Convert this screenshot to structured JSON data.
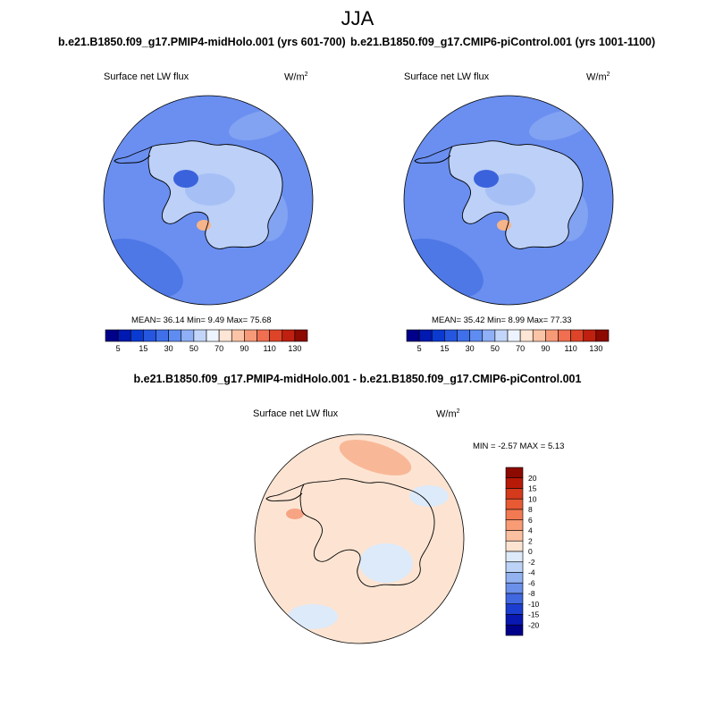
{
  "page": {
    "title": "JJA",
    "diff_title": "b.e21.B1850.f09_g17.PMIP4-midHolo.001 - b.e21.B1850.f09_g17.CMIP6-piControl.001"
  },
  "chart_data": [
    {
      "type": "heatmap",
      "projection": "south-polar-stereographic",
      "title": "b.e21.B1850.f09_g17.PMIP4-midHolo.001 (yrs 601-700)",
      "variable": "Surface net LW flux",
      "units_base": "W/m",
      "units_exp": "2",
      "stats": "MEAN=  36.14  Min=   9.49  Max=  75.68",
      "mean": 36.14,
      "min": 9.49,
      "max": 75.68,
      "colorbar": {
        "orientation": "horizontal",
        "levels": [
          5,
          10,
          15,
          20,
          30,
          40,
          50,
          60,
          70,
          80,
          90,
          100,
          110,
          120,
          130
        ],
        "labels": [
          "5",
          "15",
          "30",
          "50",
          "70",
          "90",
          "110",
          "130"
        ],
        "colors": [
          "#00008a",
          "#0019b0",
          "#0a3ad0",
          "#2556e0",
          "#3f70ea",
          "#5e8cf0",
          "#8fb0f6",
          "#c3d6fa",
          "#eef4ff",
          "#fde6d6",
          "#fbc4a6",
          "#f79a78",
          "#ef6f50",
          "#de4428",
          "#bf2010",
          "#8c0a00"
        ]
      }
    },
    {
      "type": "heatmap",
      "projection": "south-polar-stereographic",
      "title": "b.e21.B1850.f09_g17.CMIP6-piControl.001 (yrs 1001-1100)",
      "variable": "Surface net LW flux",
      "units_base": "W/m",
      "units_exp": "2",
      "stats": "MEAN=  35.42  Min=   8.99  Max=  77.33",
      "mean": 35.42,
      "min": 8.99,
      "max": 77.33,
      "colorbar": {
        "orientation": "horizontal",
        "levels": [
          5,
          10,
          15,
          20,
          30,
          40,
          50,
          60,
          70,
          80,
          90,
          100,
          110,
          120,
          130
        ],
        "labels": [
          "5",
          "15",
          "30",
          "50",
          "70",
          "90",
          "110",
          "130"
        ],
        "colors": [
          "#00008a",
          "#0019b0",
          "#0a3ad0",
          "#2556e0",
          "#3f70ea",
          "#5e8cf0",
          "#8fb0f6",
          "#c3d6fa",
          "#eef4ff",
          "#fde6d6",
          "#fbc4a6",
          "#f79a78",
          "#ef6f50",
          "#de4428",
          "#bf2010",
          "#8c0a00"
        ]
      }
    },
    {
      "type": "heatmap",
      "projection": "south-polar-stereographic",
      "title": "b.e21.B1850.f09_g17.PMIP4-midHolo.001 - b.e21.B1850.f09_g17.CMIP6-piControl.001",
      "variable": "Surface net LW flux",
      "units_base": "W/m",
      "units_exp": "2",
      "stats": "MIN =  -2.57 MAX =   5.13",
      "min": -2.57,
      "max": 5.13,
      "colorbar": {
        "orientation": "vertical",
        "labels_top_to_bottom": [
          "20",
          "15",
          "10",
          "8",
          "6",
          "4",
          "2",
          "0",
          "-2",
          "-4",
          "-6",
          "-8",
          "-10",
          "-15",
          "-20"
        ],
        "colors_top_to_bottom": [
          "#8c0a00",
          "#b81a08",
          "#d43a1c",
          "#e85a34",
          "#f27a52",
          "#f89c76",
          "#fbc0a0",
          "#fde4d2",
          "#dceafa",
          "#bcd2f6",
          "#92b2f0",
          "#6a90ea",
          "#4068e0",
          "#1c3ed0",
          "#0818b0",
          "#00008a"
        ]
      }
    }
  ]
}
